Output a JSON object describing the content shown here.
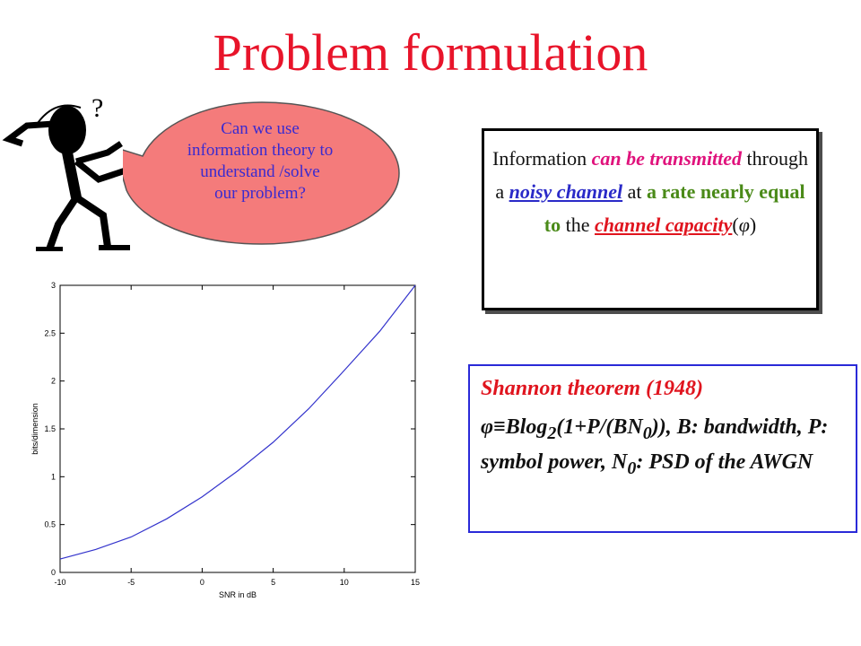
{
  "slide": {
    "title": "Problem formulation"
  },
  "bubble": {
    "lines": [
      "Can  we use",
      "information theory to",
      "understand /solve",
      "our problem?"
    ],
    "question_mark": "?",
    "color": "#f47b7b"
  },
  "info_box": {
    "w1": "Information ",
    "w2": "can be transmitted",
    "w3": " through a ",
    "w4": "noisy channel",
    "w5": " at ",
    "w6": "a rate nearly equal to",
    "w7": " the ",
    "w8": "channel capacity",
    "w9": "(",
    "w10": "φ",
    "w11": ")"
  },
  "theorem": {
    "title": "Shannon theorem (1948)",
    "phi": "φ≡Blog",
    "sub1": "2",
    "mid": "(1+P/(BN",
    "sub2": "0",
    "rest": ")), B: bandwidth, P: symbol power, N",
    "sub3": "0",
    "end": ": PSD of the AWGN"
  },
  "chart_data": {
    "type": "line",
    "xlabel": "SNR in dB",
    "ylabel": "bits/dimension",
    "xlim": [
      -10,
      15
    ],
    "ylim": [
      0,
      3
    ],
    "xticks": [
      -10,
      -5,
      0,
      5,
      10,
      15
    ],
    "yticks": [
      0,
      0.5,
      1,
      1.5,
      2,
      2.5,
      3
    ],
    "grid": false,
    "series": [
      {
        "color": "#3333cc",
        "x": [
          -10,
          -7.5,
          -5,
          -2.5,
          0,
          2.5,
          5,
          7.5,
          10,
          12.5,
          15
        ],
        "y": [
          0.14,
          0.24,
          0.37,
          0.56,
          0.79,
          1.06,
          1.36,
          1.71,
          2.11,
          2.52,
          3.0
        ]
      }
    ]
  }
}
